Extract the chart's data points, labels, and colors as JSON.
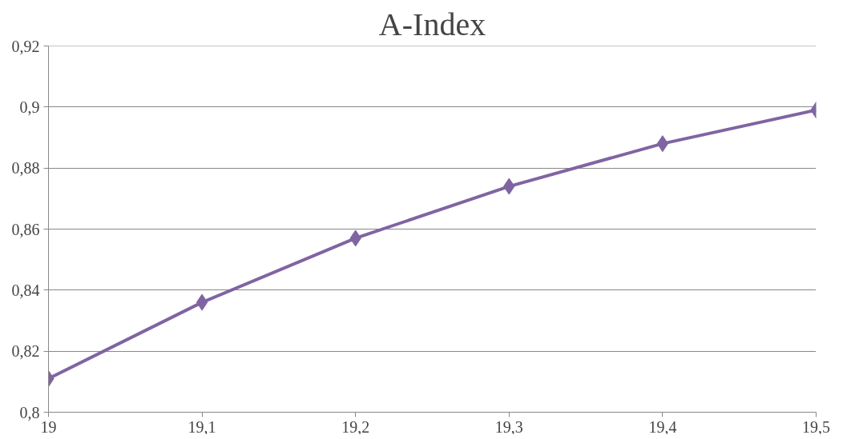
{
  "chart_data": {
    "type": "line",
    "title": "A-Index",
    "x": [
      19,
      19.1,
      19.2,
      19.3,
      19.4,
      19.5
    ],
    "series": [
      {
        "color": "#8064a2",
        "values": [
          0.811,
          0.836,
          0.857,
          0.874,
          0.888,
          0.899
        ]
      }
    ],
    "xlim": [
      19,
      19.5
    ],
    "xticks": [
      19,
      {
        "value": 19.1,
        "label": "19,1"
      },
      {
        "value": 19.2,
        "label": "19,2"
      },
      {
        "value": 19.3,
        "label": "19,3"
      },
      {
        "value": 19.4,
        "label": "19,4"
      },
      {
        "value": 19.5,
        "label": "19,5"
      }
    ],
    "ylim": [
      0.8,
      0.92
    ],
    "yticks": [
      {
        "value": 0.8,
        "label": "0,8"
      },
      {
        "value": 0.82,
        "label": "0,82"
      },
      {
        "value": 0.84,
        "label": "0,84"
      },
      {
        "value": 0.86,
        "label": "0,86"
      },
      {
        "value": 0.88,
        "label": "0,88"
      },
      {
        "value": 0.9,
        "label": "0,9"
      },
      {
        "value": 0.92,
        "label": "0,92"
      }
    ],
    "grid": "y",
    "marker": "diamond",
    "line_style": "solid"
  }
}
